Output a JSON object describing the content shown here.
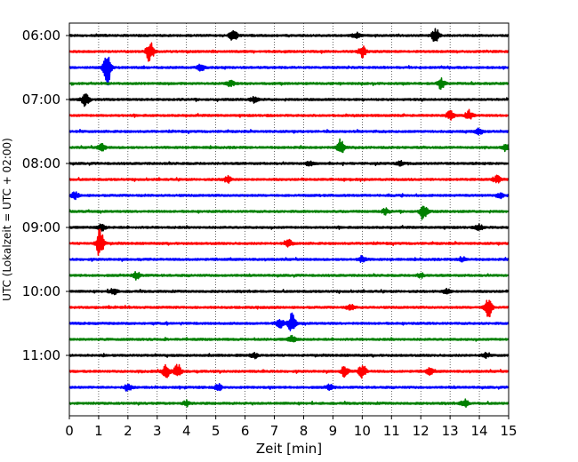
{
  "chart_data": {
    "type": "line",
    "title": "",
    "xlabel": "Zeit  [min]",
    "ylabel": "UTC (Lokalzeit = UTC + 02:00)",
    "xlim": [
      0,
      15
    ],
    "x_ticks": [
      0,
      1,
      2,
      3,
      4,
      5,
      6,
      7,
      8,
      9,
      10,
      11,
      12,
      13,
      14,
      15
    ],
    "y_tick_labels": [
      "06:00",
      "07:00",
      "08:00",
      "09:00",
      "10:00",
      "11:00"
    ],
    "grid": "vertical dotted",
    "trace_colors": [
      "#000000",
      "#ff0000",
      "#0000ff",
      "#008000"
    ],
    "traces": [
      {
        "start": "06:00",
        "events": [
          {
            "t": 5.6,
            "a": 1.1
          },
          {
            "t": 12.5,
            "a": 1.4
          },
          {
            "t": 9.8,
            "a": 0.5
          }
        ]
      },
      {
        "start": "06:15",
        "events": [
          {
            "t": 2.75,
            "a": 2.0
          },
          {
            "t": 10.0,
            "a": 1.0
          }
        ]
      },
      {
        "start": "06:30",
        "events": [
          {
            "t": 1.3,
            "a": 3.5
          },
          {
            "t": 4.5,
            "a": 0.6
          }
        ]
      },
      {
        "start": "06:45",
        "events": [
          {
            "t": 12.7,
            "a": 1.0
          },
          {
            "t": 5.5,
            "a": 0.5
          }
        ]
      },
      {
        "start": "07:00",
        "events": [
          {
            "t": 0.55,
            "a": 1.3
          },
          {
            "t": 6.3,
            "a": 0.5
          }
        ]
      },
      {
        "start": "07:15",
        "events": [
          {
            "t": 13.0,
            "a": 0.8
          },
          {
            "t": 13.65,
            "a": 1.0
          }
        ]
      },
      {
        "start": "07:30",
        "events": [
          {
            "t": 14.0,
            "a": 0.6
          }
        ]
      },
      {
        "start": "07:45",
        "events": [
          {
            "t": 9.25,
            "a": 1.5
          },
          {
            "t": 1.1,
            "a": 0.7
          },
          {
            "t": 14.9,
            "a": 0.6
          }
        ]
      },
      {
        "start": "08:00",
        "events": [
          {
            "t": 8.2,
            "a": 0.4
          },
          {
            "t": 11.3,
            "a": 0.4
          }
        ]
      },
      {
        "start": "08:15",
        "events": [
          {
            "t": 5.4,
            "a": 0.6
          },
          {
            "t": 14.6,
            "a": 0.6
          }
        ]
      },
      {
        "start": "08:30",
        "events": [
          {
            "t": 0.2,
            "a": 0.6
          },
          {
            "t": 14.7,
            "a": 0.5
          }
        ]
      },
      {
        "start": "08:45",
        "events": [
          {
            "t": 12.1,
            "a": 1.5
          },
          {
            "t": 10.8,
            "a": 0.5
          }
        ]
      },
      {
        "start": "09:00",
        "events": [
          {
            "t": 1.1,
            "a": 0.7
          },
          {
            "t": 14.0,
            "a": 0.5
          }
        ]
      },
      {
        "start": "09:15",
        "events": [
          {
            "t": 1.05,
            "a": 2.8
          },
          {
            "t": 7.5,
            "a": 0.6
          }
        ]
      },
      {
        "start": "09:30",
        "events": [
          {
            "t": 10.0,
            "a": 0.6
          },
          {
            "t": 13.4,
            "a": 0.5
          }
        ]
      },
      {
        "start": "09:45",
        "events": [
          {
            "t": 2.3,
            "a": 0.7
          },
          {
            "t": 12.0,
            "a": 0.4
          }
        ]
      },
      {
        "start": "10:00",
        "events": [
          {
            "t": 1.5,
            "a": 0.6
          },
          {
            "t": 12.9,
            "a": 0.5
          }
        ]
      },
      {
        "start": "10:15",
        "events": [
          {
            "t": 14.3,
            "a": 2.0
          },
          {
            "t": 9.6,
            "a": 0.5
          }
        ]
      },
      {
        "start": "10:30",
        "events": [
          {
            "t": 7.6,
            "a": 1.8
          },
          {
            "t": 7.2,
            "a": 0.8
          }
        ]
      },
      {
        "start": "10:45",
        "events": [
          {
            "t": 7.6,
            "a": 0.6
          }
        ]
      },
      {
        "start": "11:00",
        "events": [
          {
            "t": 6.3,
            "a": 0.5
          },
          {
            "t": 14.2,
            "a": 0.4
          }
        ]
      },
      {
        "start": "11:15",
        "events": [
          {
            "t": 3.3,
            "a": 1.2
          },
          {
            "t": 3.7,
            "a": 1.3
          },
          {
            "t": 9.4,
            "a": 1.0
          },
          {
            "t": 10.0,
            "a": 1.4
          },
          {
            "t": 12.3,
            "a": 0.6
          }
        ]
      },
      {
        "start": "11:30",
        "events": [
          {
            "t": 2.0,
            "a": 0.7
          },
          {
            "t": 5.1,
            "a": 0.6
          },
          {
            "t": 8.9,
            "a": 0.5
          }
        ]
      },
      {
        "start": "11:45",
        "events": [
          {
            "t": 13.5,
            "a": 0.7
          },
          {
            "t": 4.0,
            "a": 0.5
          }
        ]
      }
    ]
  }
}
